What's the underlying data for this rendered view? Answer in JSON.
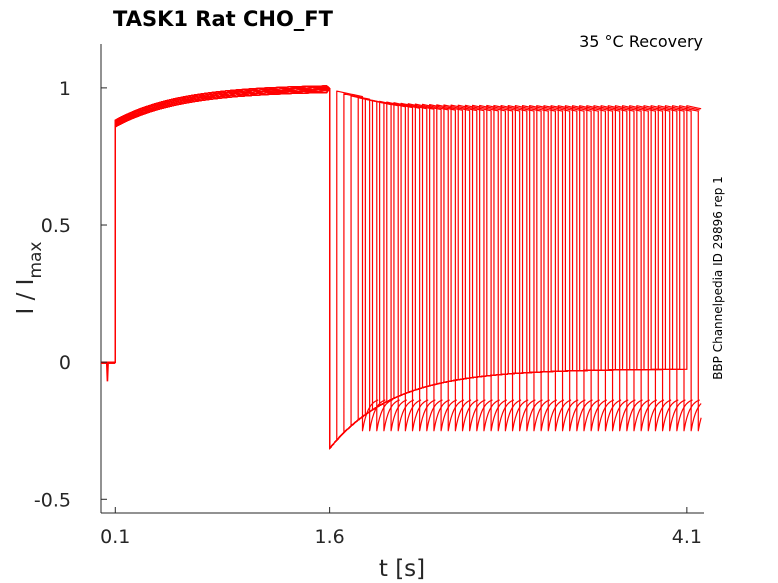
{
  "chart_data": {
    "type": "line",
    "title": "TASK1  Rat  CHO_FT",
    "annotation": "35 °C  Recovery",
    "side_label": "BBP Channelpedia ID 29896 rep 1",
    "xlabel": "t [s]",
    "ylabel": {
      "base": "I / I",
      "sub": "max"
    },
    "xlim": [
      0.0,
      4.22
    ],
    "ylim": [
      -0.55,
      1.16
    ],
    "xticks": [
      0.1,
      1.6,
      4.1
    ],
    "xtick_labels": [
      "0.1",
      "1.6",
      "4.1"
    ],
    "yticks": [
      -0.5,
      0,
      0.5,
      1
    ],
    "ytick_labels": [
      "-0.5",
      "0",
      "0.5",
      "1"
    ],
    "grid": false,
    "legend": "none",
    "color": "#ff0000",
    "protocol": {
      "prepulse_start": 0.1,
      "prepulse_end": 1.6,
      "recovery_intervals": [
        0.05,
        0.1,
        0.15,
        0.2,
        0.25,
        0.3,
        0.35,
        0.4,
        0.45,
        0.5,
        0.55,
        0.6,
        0.65,
        0.7,
        0.75,
        0.8,
        0.85,
        0.9,
        0.95,
        1.0,
        1.05,
        1.1,
        1.15,
        1.2,
        1.25,
        1.3,
        1.35,
        1.4,
        1.45,
        1.5,
        1.55,
        1.6,
        1.65,
        1.7,
        1.75,
        1.8,
        1.85,
        1.9,
        1.95,
        2.0,
        2.05,
        2.1,
        2.15,
        2.2,
        2.25,
        2.3,
        2.35,
        2.4,
        2.45,
        2.5
      ],
      "test_pulse_duration": 0.18
    },
    "series": [
      {
        "values_prepulse": {
          "x": [
            0.1,
            0.2,
            0.4,
            0.6,
            0.8,
            1.0,
            1.2,
            1.4,
            1.6
          ],
          "y": [
            0.87,
            0.9,
            0.93,
            0.955,
            0.97,
            0.98,
            0.99,
            0.995,
            1.0
          ]
        },
        "values_recovery": {
          "x": [
            1.6,
            1.7,
            1.9,
            2.1,
            2.4,
            2.8,
            3.2,
            3.6,
            4.0
          ],
          "y": [
            -0.31,
            -0.2,
            -0.13,
            -0.09,
            -0.065,
            -0.05,
            -0.04,
            -0.035,
            -0.03
          ]
        },
        "values_test_peaks": {
          "x": [
            1.65,
            1.85,
            2.05,
            2.3,
            2.6,
            2.9,
            3.2,
            3.5,
            3.8,
            4.1
          ],
          "y": [
            0.99,
            0.98,
            0.97,
            0.965,
            0.96,
            0.955,
            0.95,
            0.945,
            0.94,
            0.94
          ]
        }
      }
    ]
  }
}
